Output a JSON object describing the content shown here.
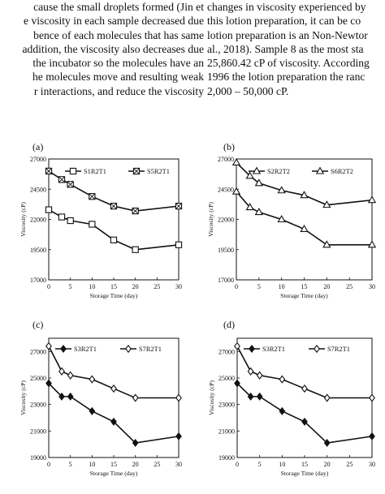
{
  "page_text": {
    "left_lines": [
      "cause the small droplets formed (Jin et",
      "e viscosity in each sample decreased due",
      "bence of each molecules that has same",
      "addition, the viscosity also decreases due",
      "the incubator so the molecules have an",
      "he molecules move and resulting weak",
      "r interactions, and reduce the viscosity"
    ],
    "right_lines": [
      "changes in viscosity experienced by",
      "this lotion preparation, it can be co",
      "lotion preparation is an Non-Newtor",
      "al., 2018). Sample 8 as the most sta",
      "25,860.42 cP of viscosity. According",
      "1996 the lotion preparation the ranc",
      "2,000 – 50,000 cP."
    ]
  },
  "chart_data": [
    {
      "panel_label": "(a)",
      "type": "line",
      "xlabel": "Storage Time (day)",
      "ylabel": "Viscosity (cP)",
      "x": [
        0,
        3,
        5,
        10,
        15,
        20,
        30
      ],
      "xticks": [
        "0",
        "5",
        "10",
        "15",
        "20",
        "25",
        "30"
      ],
      "yticks": [
        "17000",
        "19500",
        "22000",
        "24500",
        "27000"
      ],
      "ylim": [
        17000,
        27000
      ],
      "xlim": [
        0,
        30
      ],
      "legend_position": "top",
      "series": [
        {
          "name": "S1R2T1",
          "marker": "square",
          "values": [
            22800,
            22200,
            21900,
            21600,
            20300,
            19500,
            19900
          ]
        },
        {
          "name": "S5R2T1",
          "marker": "square-x",
          "values": [
            26000,
            25300,
            24900,
            23900,
            23100,
            22700,
            23100
          ]
        }
      ]
    },
    {
      "panel_label": "(b)",
      "type": "line",
      "xlabel": "Storage Time (day)",
      "ylabel": "Viscosity (cP)",
      "x": [
        0,
        3,
        5,
        10,
        15,
        20,
        30
      ],
      "xticks": [
        "0",
        "5",
        "10",
        "15",
        "20",
        "25",
        "30"
      ],
      "yticks": [
        "17000",
        "19500",
        "22000",
        "24500",
        "27000"
      ],
      "ylim": [
        17000,
        27000
      ],
      "xlim": [
        0,
        30
      ],
      "legend_position": "top",
      "series": [
        {
          "name": "S2R2T2",
          "marker": "triangle-open",
          "values": [
            26700,
            25600,
            25000,
            24400,
            24000,
            23200,
            23600
          ]
        },
        {
          "name": "S6R2T2",
          "marker": "triangle-open",
          "values": [
            24300,
            23000,
            22600,
            22000,
            21200,
            19900,
            19900
          ]
        }
      ]
    },
    {
      "panel_label": "(c)",
      "type": "line",
      "xlabel": "Storage Time (day)",
      "ylabel": "Viscosity (cP)",
      "x": [
        0,
        3,
        5,
        10,
        15,
        20,
        30
      ],
      "xticks": [
        "0",
        "5",
        "10",
        "15",
        "20",
        "25",
        "30"
      ],
      "yticks": [
        "19000",
        "21000",
        "23000",
        "25000",
        "27000"
      ],
      "ylim": [
        19000,
        28000
      ],
      "xlim": [
        0,
        30
      ],
      "legend_position": "top",
      "series": [
        {
          "name": "S3R2T1",
          "marker": "diamond-filled",
          "values": [
            24600,
            23600,
            23600,
            22500,
            21700,
            20100,
            20600
          ]
        },
        {
          "name": "S7R2T1",
          "marker": "diamond-open",
          "values": [
            27400,
            25500,
            25200,
            24900,
            24200,
            23500,
            23500
          ]
        }
      ]
    },
    {
      "panel_label": "(d)",
      "type": "line",
      "xlabel": "Storage Time (day)",
      "ylabel": "Viscosity (cP)",
      "x": [
        0,
        3,
        5,
        10,
        15,
        20,
        30
      ],
      "xticks": [
        "0",
        "5",
        "10",
        "15",
        "20",
        "25",
        "30"
      ],
      "yticks": [
        "19000",
        "21000",
        "23000",
        "25000",
        "27000"
      ],
      "ylim": [
        19000,
        28000
      ],
      "xlim": [
        0,
        30
      ],
      "legend_position": "top",
      "series": [
        {
          "name": "S3R2T1",
          "marker": "diamond-filled",
          "values": [
            24600,
            23600,
            23600,
            22500,
            21700,
            20100,
            20600
          ]
        },
        {
          "name": "S7R2T1",
          "marker": "diamond-open",
          "values": [
            27400,
            25500,
            25200,
            24900,
            24200,
            23500,
            23500
          ]
        }
      ]
    }
  ]
}
